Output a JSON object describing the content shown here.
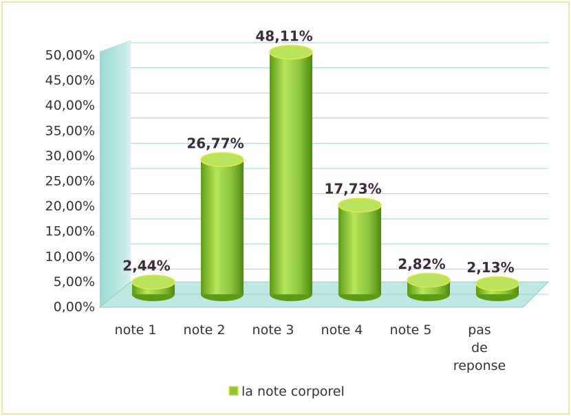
{
  "chart_data": {
    "type": "bar3d",
    "categories": [
      "note 1",
      "note 2",
      "note 3",
      "note 4",
      "note 5",
      "pas de reponse"
    ],
    "series": [
      {
        "name": "la note corporel",
        "color": "#8cc63f",
        "values": [
          2.44,
          26.77,
          48.11,
          17.73,
          2.82,
          2.13
        ],
        "value_labels": [
          "2,44%",
          "26,77%",
          "48,11%",
          "17,73%",
          "2,82%",
          "2,13%"
        ]
      }
    ],
    "ylim": [
      0,
      50
    ],
    "yticks": [
      {
        "value": 0,
        "label": "0,00%"
      },
      {
        "value": 5,
        "label": "5,00%"
      },
      {
        "value": 10,
        "label": "10,00%"
      },
      {
        "value": 15,
        "label": "15,00%"
      },
      {
        "value": 20,
        "label": "20,00%"
      },
      {
        "value": 25,
        "label": "25,00%"
      },
      {
        "value": 30,
        "label": "30,00%"
      },
      {
        "value": 35,
        "label": "35,00%"
      },
      {
        "value": 40,
        "label": "40,00%"
      },
      {
        "value": 45,
        "label": "45,00%"
      },
      {
        "value": 50,
        "label": "50,00%"
      }
    ],
    "grid": true,
    "legend": "bottom"
  }
}
